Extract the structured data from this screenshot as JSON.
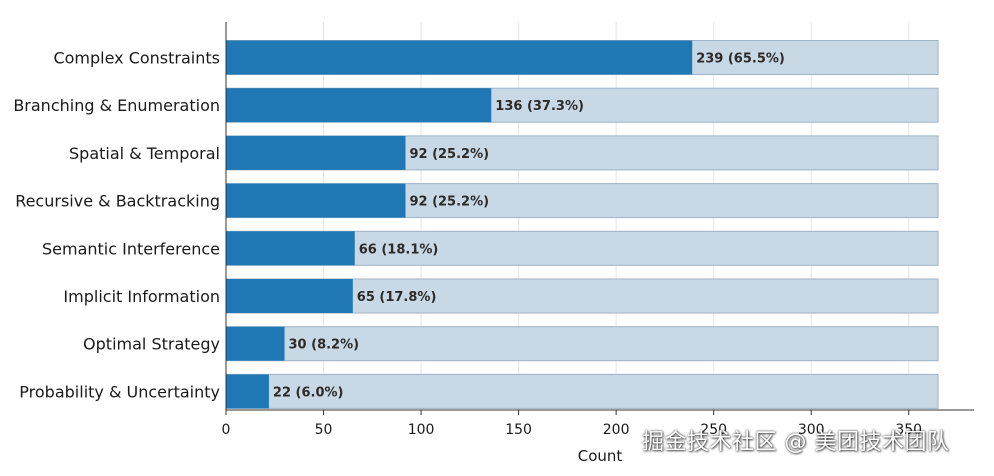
{
  "chart_data": {
    "type": "bar",
    "orientation": "horizontal",
    "categories": [
      "Complex Constraints",
      "Branching & Enumeration",
      "Spatial & Temporal",
      "Recursive & Backtracking",
      "Semantic Interference",
      "Implicit Information",
      "Optimal Strategy",
      "Probability & Uncertainty"
    ],
    "values": [
      239,
      136,
      92,
      92,
      66,
      65,
      30,
      22
    ],
    "data_labels": [
      "239 (65.5%)",
      "136 (37.3%)",
      "92 (25.2%)",
      "92 (25.2%)",
      "66 (18.1%)",
      "65 (17.8%)",
      "30 (8.2%)",
      "22 (6.0%)"
    ],
    "total": 365,
    "xlabel": "Count",
    "ylabel": "",
    "xlim": [
      0,
      365
    ],
    "xticks": [
      0,
      50,
      100,
      150,
      200,
      250,
      300,
      350
    ],
    "xtick_labels": [
      "0",
      "50",
      "100",
      "150",
      "200",
      "250",
      "300",
      "350"
    ],
    "grid": "x",
    "colors": {
      "bar": "#1f77b4",
      "background_bar": "#c9d8e5",
      "background_bar_edge": "#9fb3c6",
      "grid": "#e6e6e6",
      "axis": "#333333"
    }
  },
  "watermark": {
    "text": "掘金技术社区 @ 美团技术团队"
  }
}
